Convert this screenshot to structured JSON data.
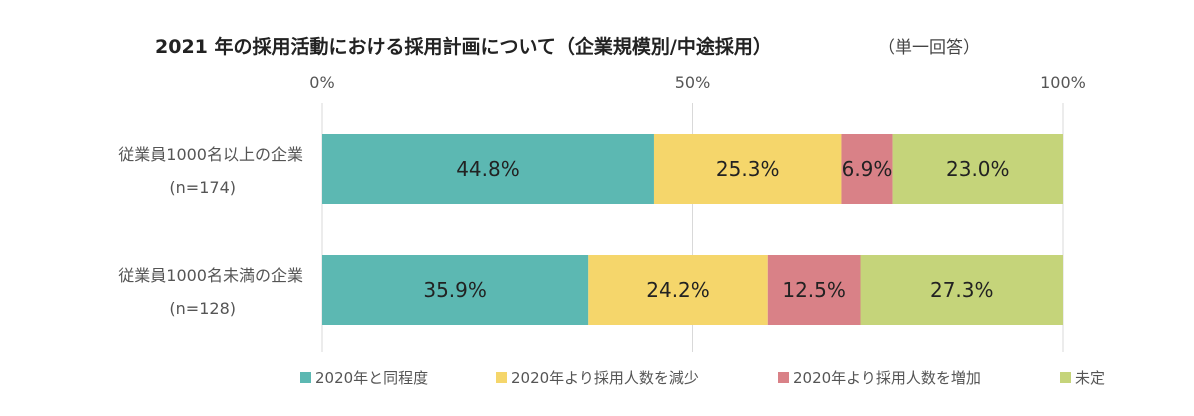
{
  "chart_data": {
    "type": "bar",
    "orientation": "horizontal",
    "stacked": "percent",
    "title": "2021 年の採用活動における採用計画について（企業規模別/中途採用）",
    "subtitle": "（単一回答）",
    "x_ticks": [
      "0%",
      "50%",
      "100%"
    ],
    "xlim": [
      0,
      100
    ],
    "grid": true,
    "legend_position": "bottom",
    "categories": [
      {
        "line1": "従業員1000名以上の企業",
        "line2": "(n=174)"
      },
      {
        "line1": "従業員1000名未満の企業",
        "line2": "(n=128)"
      }
    ],
    "series": [
      {
        "name": "2020年と同程度",
        "color": "#5cb8b2",
        "values": [
          44.8,
          35.9
        ],
        "labels": [
          "44.8%",
          "35.9%"
        ]
      },
      {
        "name": "2020年より採用人数を減少",
        "color": "#f5d66b",
        "values": [
          25.3,
          24.2
        ],
        "labels": [
          "25.3%",
          "24.2%"
        ]
      },
      {
        "name": "2020年より採用人数を増加",
        "color": "#d98187",
        "values": [
          6.9,
          12.5
        ],
        "labels": [
          "6.9%",
          "12.5%"
        ]
      },
      {
        "name": "未定",
        "color": "#c5d47a",
        "values": [
          23.0,
          27.3
        ],
        "labels": [
          "23.0%",
          "27.3%"
        ]
      }
    ]
  }
}
